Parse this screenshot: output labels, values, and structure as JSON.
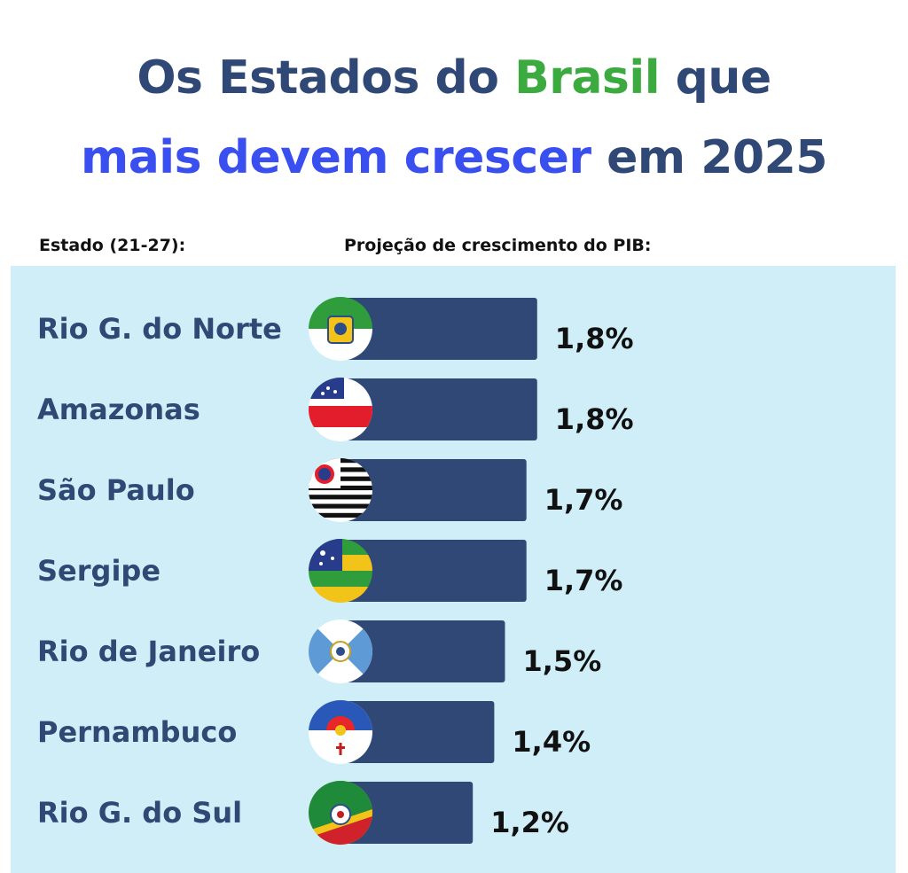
{
  "header": {
    "line1_a": "Os Estados do ",
    "line1_b": "Brasil",
    "line1_c": " que",
    "line2_a": "mais devem crescer",
    "line2_b": " em 2025"
  },
  "columns": {
    "state": "Estado (21-27):",
    "pib": "Projeção de crescimento do PIB:"
  },
  "colors": {
    "title": "#304876",
    "accent_green": "#3bab3f",
    "accent_blue": "#3a4ff0",
    "panel": "#cfeef8",
    "bar": "#304876"
  },
  "chart_data": {
    "type": "bar",
    "orientation": "horizontal",
    "categories": [
      "Rio G. do Norte",
      "Amazonas",
      "São Paulo",
      "Sergipe",
      "Rio de Janeiro",
      "Pernambuco",
      "Rio G. do Sul"
    ],
    "values": [
      1.8,
      1.8,
      1.7,
      1.7,
      1.5,
      1.4,
      1.2
    ],
    "value_labels": [
      "1,8%",
      "1,8%",
      "1,7%",
      "1,7%",
      "1,5%",
      "1,4%",
      "1,2%"
    ],
    "flags": [
      "rn-flag-icon",
      "am-flag-icon",
      "sp-flag-icon",
      "se-flag-icon",
      "rj-flag-icon",
      "pe-flag-icon",
      "rs-flag-icon"
    ],
    "grid": false
  }
}
